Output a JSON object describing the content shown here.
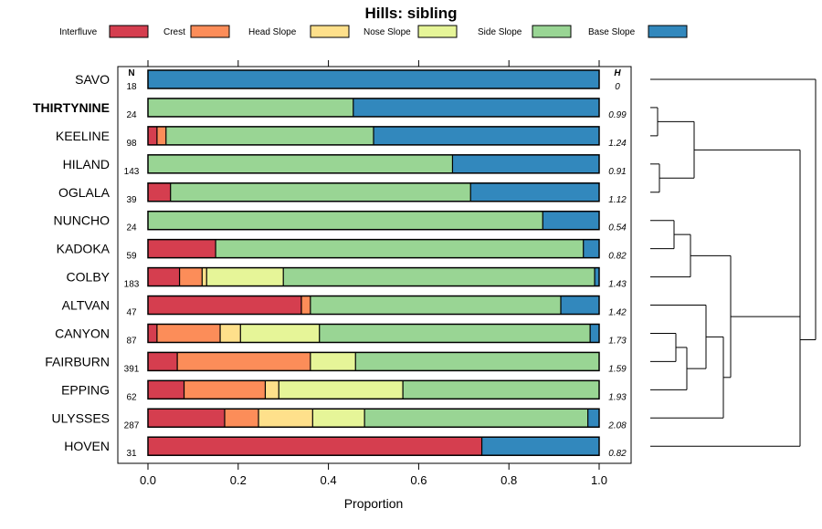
{
  "chart_data": {
    "type": "bar",
    "orientation": "horizontal",
    "stacked": true,
    "title": "Hills: sibling",
    "xlabel": "Proportion",
    "ylabel": "",
    "xlim": [
      0,
      1
    ],
    "x_ticks": [
      "0.0",
      "0.2",
      "0.4",
      "0.6",
      "0.8",
      "1.0"
    ],
    "n_header": "N",
    "h_header": "H",
    "legend_position": "top",
    "legend": [
      {
        "name": "Interfluve",
        "color": "#d53e4f"
      },
      {
        "name": "Crest",
        "color": "#fc8d59"
      },
      {
        "name": "Head Slope",
        "color": "#fee08b"
      },
      {
        "name": "Nose Slope",
        "color": "#e6f598"
      },
      {
        "name": "Side Slope",
        "color": "#99d594"
      },
      {
        "name": "Base Slope",
        "color": "#3288bd"
      }
    ],
    "categories": [
      "SAVO",
      "THIRTYNINE",
      "KEELINE",
      "HILAND",
      "OGLALA",
      "NUNCHO",
      "KADOKA",
      "COLBY",
      "ALTVAN",
      "CANYON",
      "FAIRBURN",
      "EPPING",
      "ULYSSES",
      "HOVEN"
    ],
    "highlighted": "THIRTYNINE",
    "n_values": [
      "18",
      "24",
      "98",
      "143",
      "39",
      "24",
      "59",
      "183",
      "47",
      "87",
      "391",
      "62",
      "287",
      "31"
    ],
    "h_values": [
      "0",
      "0.99",
      "1.24",
      "0.91",
      "1.12",
      "0.54",
      "0.82",
      "1.43",
      "1.42",
      "1.73",
      "1.59",
      "1.93",
      "2.08",
      "0.82"
    ],
    "series": [
      {
        "name": "Interfluve",
        "values": [
          0,
          0,
          0.02,
          0,
          0.05,
          0,
          0.15,
          0.07,
          0.34,
          0.02,
          0.065,
          0.08,
          0.17,
          0.74
        ]
      },
      {
        "name": "Crest",
        "values": [
          0,
          0,
          0.02,
          0,
          0,
          0,
          0,
          0.05,
          0.02,
          0.14,
          0.295,
          0.18,
          0.075,
          0
        ]
      },
      {
        "name": "Head Slope",
        "values": [
          0,
          0,
          0,
          0,
          0,
          0,
          0,
          0.01,
          0,
          0.045,
          0,
          0.03,
          0.12,
          0
        ]
      },
      {
        "name": "Nose Slope",
        "values": [
          0,
          0,
          0,
          0,
          0,
          0,
          0,
          0.17,
          0,
          0.175,
          0.1,
          0.275,
          0.115,
          0
        ]
      },
      {
        "name": "Side Slope",
        "values": [
          0,
          0.455,
          0.46,
          0.675,
          0.665,
          0.875,
          0.815,
          0.69,
          0.555,
          0.6,
          0.54,
          0.435,
          0.495,
          0
        ]
      },
      {
        "name": "Base Slope",
        "values": [
          1,
          0.545,
          0.5,
          0.325,
          0.285,
          0.125,
          0.035,
          0.01,
          0.085,
          0.02,
          0,
          0,
          0.025,
          0.26
        ]
      }
    ],
    "dendrogram": {
      "description": "hierarchical clustering of series rows",
      "structure": [
        [
          "SAVO"
        ],
        [
          [
            [
              "THIRTYNINE",
              "KEELINE"
            ],
            [
              "HILAND",
              "OGLALA"
            ]
          ],
          [
            [
              [
                "NUNCHO",
                "KADOKA"
              ],
              "COLBY"
            ],
            [
              [
                "ALTVAN",
                [
                  [
                    "CANYON",
                    "FAIRBURN"
                  ],
                  "EPPING"
                ]
              ],
              "ULYSSES"
            ]
          ]
        ],
        [
          "HOVEN"
        ]
      ]
    }
  }
}
